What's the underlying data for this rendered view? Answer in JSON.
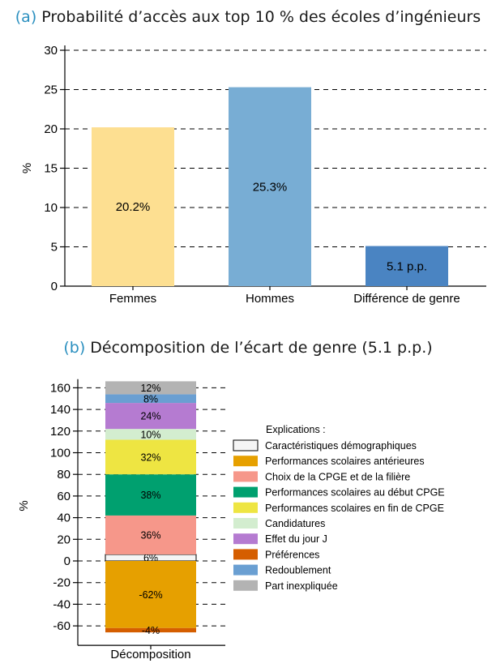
{
  "panel_a": {
    "letter": "(a)",
    "title": "Probabilité d’accès aux top 10 % des écoles d’ingénieurs"
  },
  "panel_b": {
    "letter": "(b)",
    "title": "Décomposition de l’écart de genre (5.1 p.p.)"
  },
  "chart_data": [
    {
      "type": "bar",
      "title": "Probabilité d’accès aux top 10 % des écoles d’ingénieurs",
      "xlabel": "",
      "ylabel": "%",
      "ylim": [
        0,
        30
      ],
      "yticks": [
        0,
        5,
        10,
        15,
        20,
        25,
        30
      ],
      "grid": "horizontal-dashed",
      "categories": [
        "Femmes",
        "Hommes",
        "Différence de genre"
      ],
      "values": [
        20.2,
        25.3,
        5.1
      ],
      "labels": [
        "20.2%",
        "25.3%",
        "5.1 p.p."
      ],
      "colors": [
        "#FDDF91",
        "#78ADD4",
        "#4A84C2"
      ]
    },
    {
      "type": "bar",
      "stacked": true,
      "title": "Décomposition de l’écart de genre (5.1 p.p.)",
      "xlabel": "",
      "ylabel": "%",
      "ylim": [
        -66,
        168
      ],
      "yticks": [
        -60,
        -40,
        -20,
        0,
        20,
        40,
        60,
        80,
        100,
        120,
        140,
        160
      ],
      "grid": "horizontal-dashed",
      "categories": [
        "Décomposition"
      ],
      "legend_title": "Explications :",
      "legend_position": "right",
      "series": [
        {
          "name": "Caractéristiques démographiques",
          "values": [
            6
          ],
          "label": "6%",
          "color": "#F5F5F5"
        },
        {
          "name": "Performances scolaires antérieures",
          "values": [
            -62
          ],
          "label": "-62%",
          "color": "#E6A000"
        },
        {
          "name": "Choix de la CPGE et de la filière",
          "values": [
            36
          ],
          "label": "36%",
          "color": "#F6978A"
        },
        {
          "name": "Performances scolaires au début CPGE",
          "values": [
            38
          ],
          "label": "38%",
          "color": "#00A06F"
        },
        {
          "name": "Performances scolaires en fin de CPGE",
          "values": [
            32
          ],
          "label": "32%",
          "color": "#EEE542"
        },
        {
          "name": "Candidatures",
          "values": [
            10
          ],
          "label": "10%",
          "color": "#D3EDCF"
        },
        {
          "name": "Effet du jour J",
          "values": [
            24
          ],
          "label": "24%",
          "color": "#B57BD1"
        },
        {
          "name": "Préférences",
          "values": [
            -4
          ],
          "label": "-4%",
          "color": "#D55E00"
        },
        {
          "name": "Redoublement",
          "values": [
            8
          ],
          "label": "8%",
          "color": "#6A9FD2"
        },
        {
          "name": "Part inexpliquée",
          "values": [
            12
          ],
          "label": "12%",
          "color": "#B3B3B3"
        }
      ]
    }
  ]
}
